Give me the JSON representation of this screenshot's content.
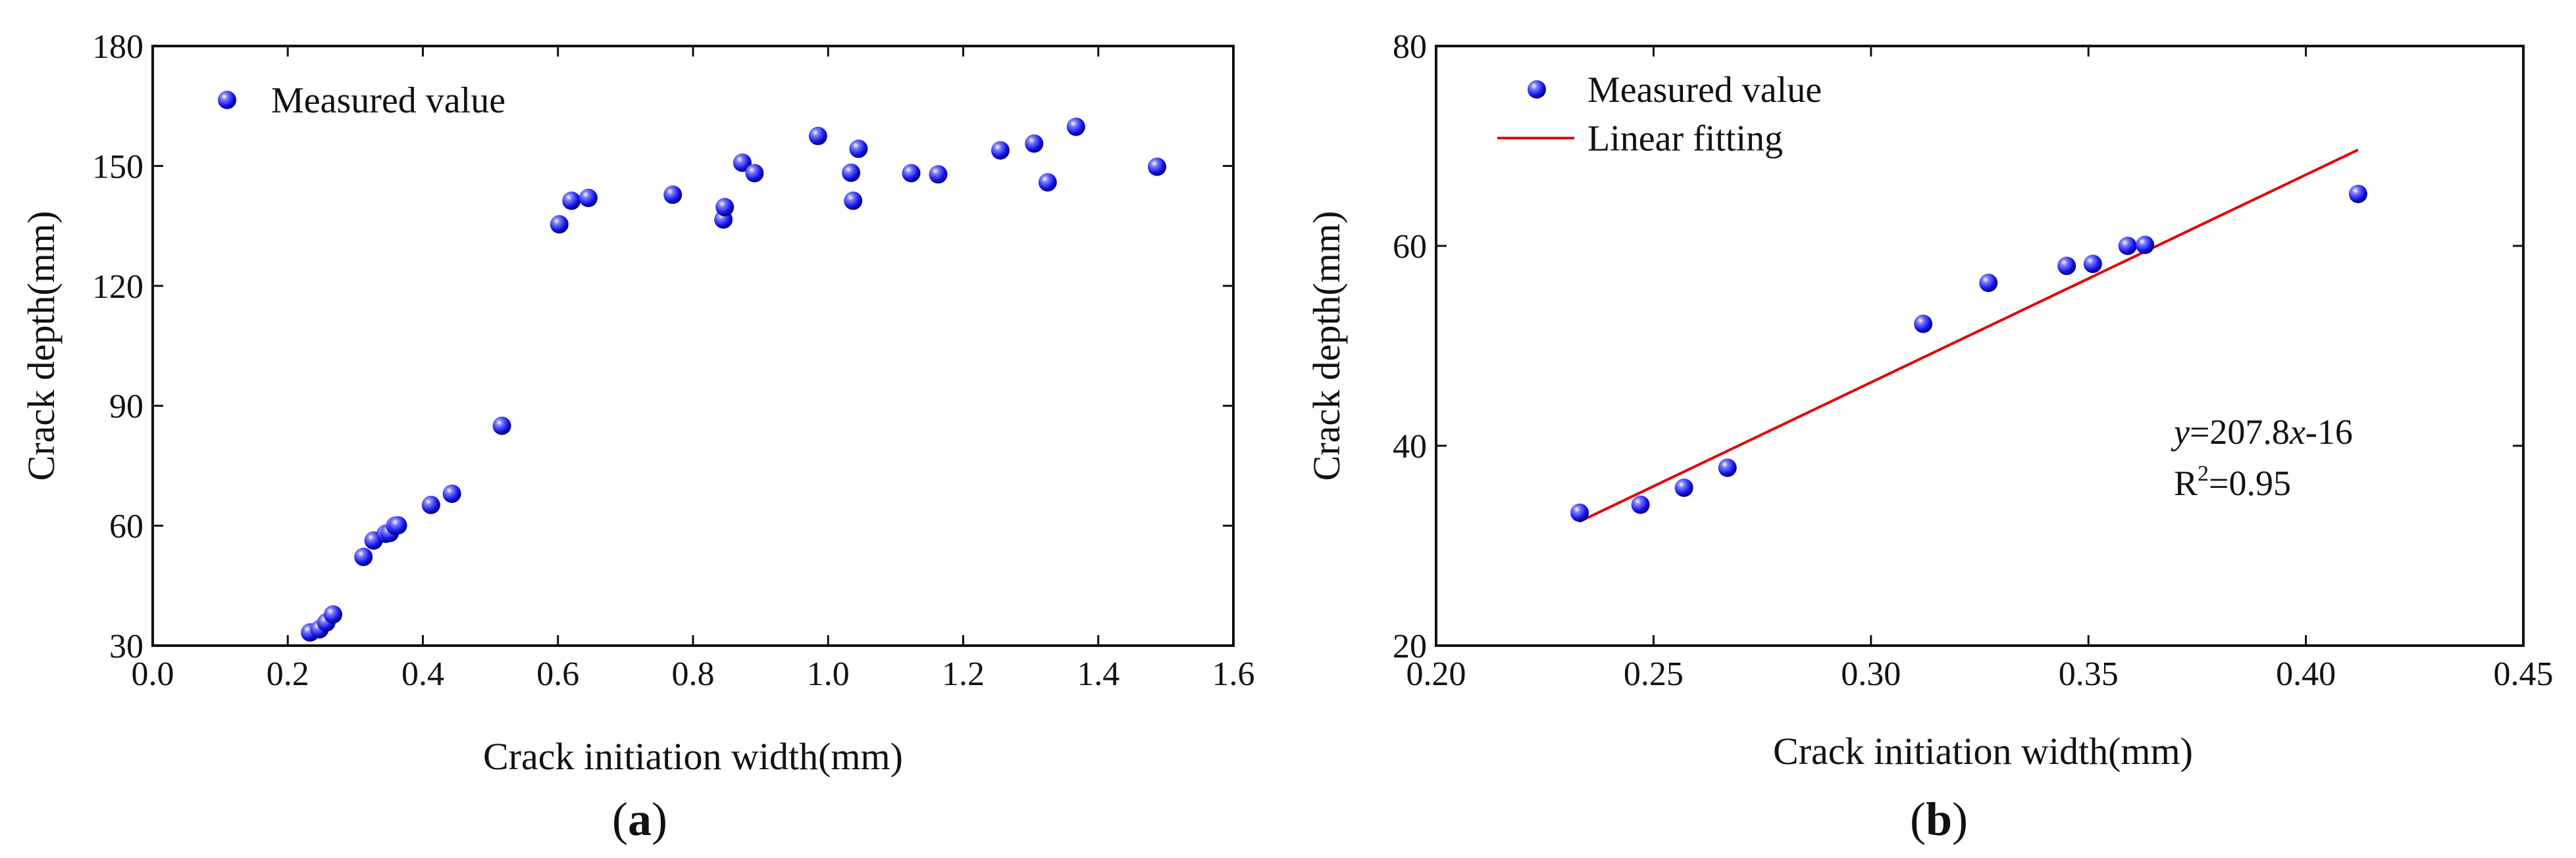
{
  "chart_data": [
    {
      "panel": "a",
      "type": "scatter",
      "panel_label": {
        "open": "(",
        "letter": "a",
        "close": ")"
      },
      "xlabel": "Crack initiation width(mm)",
      "ylabel": "Crack depth(mm)",
      "xlim": [
        0.0,
        1.6
      ],
      "ylim": [
        30,
        180
      ],
      "xticks": [
        0.0,
        0.2,
        0.4,
        0.6,
        0.8,
        1.0,
        1.2,
        1.4,
        1.6
      ],
      "xtick_labels": [
        "0.0",
        "0.2",
        "0.4",
        "0.6",
        "0.8",
        "1.0",
        "1.2",
        "1.4",
        "1.6"
      ],
      "yticks": [
        30,
        60,
        90,
        120,
        150,
        180
      ],
      "ytick_labels": [
        "30",
        "60",
        "90",
        "120",
        "150",
        "180"
      ],
      "legend": {
        "label": "Measured value",
        "position": "top-left"
      },
      "grid": false,
      "series": [
        {
          "name": "Measured value",
          "color": "#1414e6",
          "x": [
            0.233,
            0.247,
            0.257,
            0.267,
            0.312,
            0.327,
            0.345,
            0.351,
            0.359,
            0.363,
            0.412,
            0.443,
            0.517,
            0.602,
            0.62,
            0.645,
            0.77,
            0.845,
            0.847,
            0.873,
            0.891,
            0.985,
            1.034,
            1.037,
            1.045,
            1.123,
            1.163,
            1.255,
            1.305,
            1.325,
            1.367,
            1.487
          ],
          "y": [
            33.3,
            34.1,
            35.8,
            37.8,
            52.2,
            56.3,
            58.0,
            58.2,
            60.0,
            60.1,
            65.2,
            68.0,
            85.0,
            135.4,
            141.3,
            142.0,
            142.8,
            136.6,
            139.7,
            150.8,
            148.2,
            157.5,
            148.3,
            141.3,
            154.3,
            148.2,
            147.9,
            153.9,
            155.6,
            145.9,
            159.8,
            149.8
          ]
        }
      ]
    },
    {
      "panel": "b",
      "type": "scatter",
      "panel_label": {
        "open": "(",
        "letter": "b",
        "close": ")"
      },
      "xlabel": "Crack initiation width(mm)",
      "ylabel": "Crack depth(mm)",
      "xlim": [
        0.2,
        0.45
      ],
      "ylim": [
        20,
        80
      ],
      "xticks": [
        0.2,
        0.25,
        0.3,
        0.35,
        0.4,
        0.45
      ],
      "xtick_labels": [
        "0.20",
        "0.25",
        "0.30",
        "0.35",
        "0.40",
        "0.45"
      ],
      "yticks": [
        20,
        40,
        60,
        80
      ],
      "ytick_labels": [
        "20",
        "40",
        "60",
        "80"
      ],
      "legend": {
        "labels": [
          "Measured value",
          "Linear fitting"
        ],
        "position": "top-left"
      },
      "grid": false,
      "series": [
        {
          "name": "Measured value",
          "color": "#1414e6",
          "x": [
            0.233,
            0.247,
            0.257,
            0.267,
            0.312,
            0.327,
            0.345,
            0.351,
            0.359,
            0.363,
            0.412
          ],
          "y": [
            33.3,
            34.1,
            35.8,
            37.8,
            52.2,
            56.3,
            58.0,
            58.2,
            60.0,
            60.1,
            65.2
          ]
        }
      ],
      "fit": {
        "name": "Linear fitting",
        "color": "#e60000",
        "slope": 207.8,
        "intercept": -16,
        "x_range": [
          0.233,
          0.412
        ],
        "equation": {
          "y": "y",
          "eq1": "=207.8",
          "x": "x",
          "eq2": "-16"
        },
        "r2": {
          "R": "R",
          "sup": "2",
          "eq": "=0.95"
        }
      }
    }
  ]
}
